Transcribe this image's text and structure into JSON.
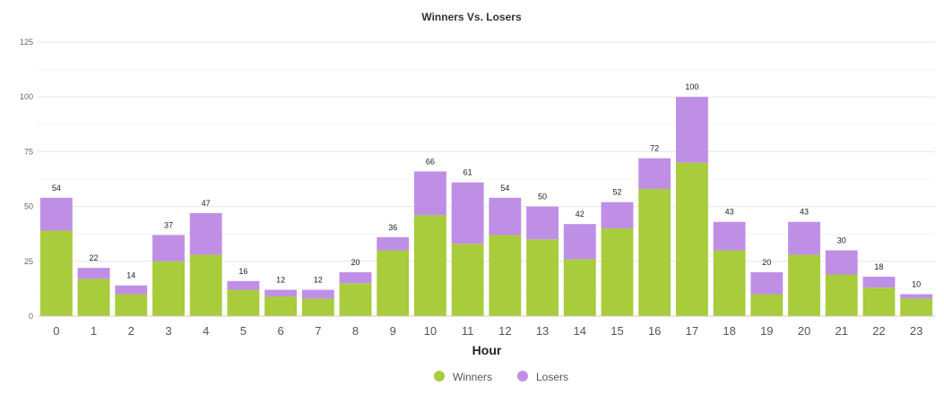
{
  "chart_data": {
    "type": "bar",
    "stacked": true,
    "title": "Winners Vs. Losers",
    "xlabel": "Hour",
    "ylabel": "",
    "ylim": [
      0,
      125
    ],
    "yticks": [
      0,
      25,
      50,
      75,
      100,
      125
    ],
    "categories": [
      "0",
      "1",
      "2",
      "3",
      "4",
      "5",
      "6",
      "7",
      "8",
      "9",
      "10",
      "11",
      "12",
      "13",
      "14",
      "15",
      "16",
      "17",
      "18",
      "19",
      "20",
      "21",
      "22",
      "23"
    ],
    "series": [
      {
        "name": "Winners",
        "color": "#a8cc3c",
        "values": [
          39,
          17,
          10,
          25,
          28,
          12,
          9,
          8,
          15,
          30,
          46,
          33,
          37,
          35,
          26,
          40,
          58,
          70,
          30,
          10,
          28,
          19,
          13,
          8
        ]
      },
      {
        "name": "Losers",
        "color": "#bf8fe6",
        "values": [
          15,
          5,
          4,
          12,
          19,
          4,
          3,
          4,
          5,
          6,
          20,
          28,
          17,
          15,
          16,
          12,
          14,
          30,
          13,
          10,
          15,
          11,
          5,
          2
        ]
      }
    ],
    "totals": [
      54,
      22,
      14,
      37,
      47,
      16,
      12,
      12,
      20,
      36,
      66,
      61,
      54,
      50,
      42,
      52,
      72,
      100,
      43,
      20,
      43,
      30,
      18,
      10
    ],
    "grid": true,
    "legend": "bottom-center"
  }
}
